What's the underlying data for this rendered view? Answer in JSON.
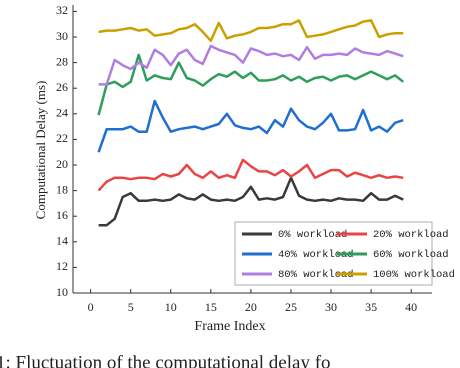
{
  "chart_data": {
    "type": "line",
    "x_label": "Frame Index",
    "y_label": "Computational Delay (ms)",
    "caption": "1: Fluctuation of the computational delay fo",
    "x": [
      1,
      2,
      3,
      4,
      5,
      6,
      7,
      8,
      9,
      10,
      11,
      12,
      13,
      14,
      15,
      16,
      17,
      18,
      19,
      20,
      21,
      22,
      23,
      24,
      25,
      26,
      27,
      28,
      29,
      30,
      31,
      32,
      33,
      34,
      35,
      36,
      37,
      38,
      39
    ],
    "series": [
      {
        "name": "0% workload",
        "color": "#3a3a3a",
        "values": [
          15.3,
          15.3,
          15.8,
          17.5,
          17.8,
          17.2,
          17.2,
          17.3,
          17.2,
          17.3,
          17.7,
          17.4,
          17.3,
          17.7,
          17.3,
          17.2,
          17.3,
          17.2,
          17.5,
          18.3,
          17.3,
          17.4,
          17.3,
          17.5,
          19.0,
          17.6,
          17.3,
          17.2,
          17.3,
          17.2,
          17.4,
          17.3,
          17.3,
          17.2,
          17.8,
          17.3,
          17.3,
          17.6,
          17.3
        ]
      },
      {
        "name": "20% workload",
        "color": "#e84545",
        "values": [
          18.0,
          18.7,
          19.0,
          19.0,
          18.9,
          19.0,
          19.0,
          18.9,
          19.3,
          19.1,
          19.3,
          20.0,
          19.3,
          19.0,
          19.5,
          19.0,
          19.2,
          19.0,
          20.4,
          19.9,
          19.5,
          19.5,
          19.2,
          19.6,
          19.1,
          19.5,
          20.0,
          19.0,
          19.3,
          19.6,
          19.6,
          19.1,
          19.4,
          19.2,
          19.0,
          19.2,
          19.0,
          19.1,
          19.0
        ]
      },
      {
        "name": "40% workload",
        "color": "#1f6fd1",
        "values": [
          21.0,
          22.8,
          22.8,
          22.8,
          23.0,
          22.6,
          22.6,
          25.0,
          23.7,
          22.6,
          22.8,
          22.9,
          23.0,
          22.8,
          23.0,
          23.2,
          24.0,
          23.1,
          22.9,
          22.8,
          23.0,
          22.5,
          23.5,
          23.0,
          24.4,
          23.5,
          23.0,
          22.8,
          23.3,
          24.0,
          22.7,
          22.7,
          22.8,
          24.3,
          22.7,
          23.0,
          22.6,
          23.3,
          23.5
        ]
      },
      {
        "name": "60% workload",
        "color": "#2e9e5b",
        "values": [
          23.9,
          26.3,
          26.5,
          26.1,
          26.5,
          28.6,
          26.6,
          27.0,
          26.8,
          26.7,
          28.0,
          26.8,
          26.6,
          26.2,
          26.7,
          27.1,
          26.9,
          27.3,
          26.8,
          27.2,
          26.6,
          26.6,
          26.7,
          27.0,
          26.6,
          26.9,
          26.5,
          26.8,
          26.9,
          26.6,
          26.9,
          27.0,
          26.7,
          27.0,
          27.3,
          27.0,
          26.7,
          27.0,
          26.5
        ]
      },
      {
        "name": "80% workload",
        "color": "#b07de0",
        "values": [
          26.3,
          26.3,
          28.2,
          27.8,
          27.5,
          28.0,
          27.6,
          29.0,
          28.6,
          27.8,
          28.7,
          29.0,
          28.2,
          27.9,
          29.3,
          29.0,
          28.8,
          28.6,
          28.0,
          29.1,
          28.9,
          28.6,
          28.7,
          28.5,
          28.6,
          28.2,
          29.2,
          28.3,
          28.6,
          28.6,
          28.7,
          28.6,
          29.1,
          28.8,
          28.7,
          28.6,
          28.9,
          28.7,
          28.5
        ]
      },
      {
        "name": "100% workload",
        "color": "#c9a000",
        "values": [
          30.4,
          30.5,
          30.5,
          30.6,
          30.7,
          30.5,
          30.6,
          30.1,
          30.2,
          30.3,
          30.6,
          30.7,
          31.0,
          30.4,
          29.7,
          31.1,
          29.9,
          30.1,
          30.2,
          30.4,
          30.7,
          30.7,
          30.8,
          31.0,
          31.0,
          31.3,
          30.0,
          30.1,
          30.2,
          30.4,
          30.6,
          30.8,
          30.9,
          31.2,
          31.3,
          30.0,
          30.2,
          30.3,
          30.3
        ]
      }
    ],
    "xlim": [
      -2.2,
      42.6
    ],
    "xticks": [
      0,
      5,
      10,
      15,
      20,
      25,
      30,
      35,
      40
    ],
    "ylim": [
      10,
      32.5
    ],
    "yticks": [
      10,
      12,
      14,
      16,
      18,
      20,
      22,
      24,
      26,
      28,
      30,
      32
    ],
    "grid": false,
    "legend": "lower right"
  }
}
